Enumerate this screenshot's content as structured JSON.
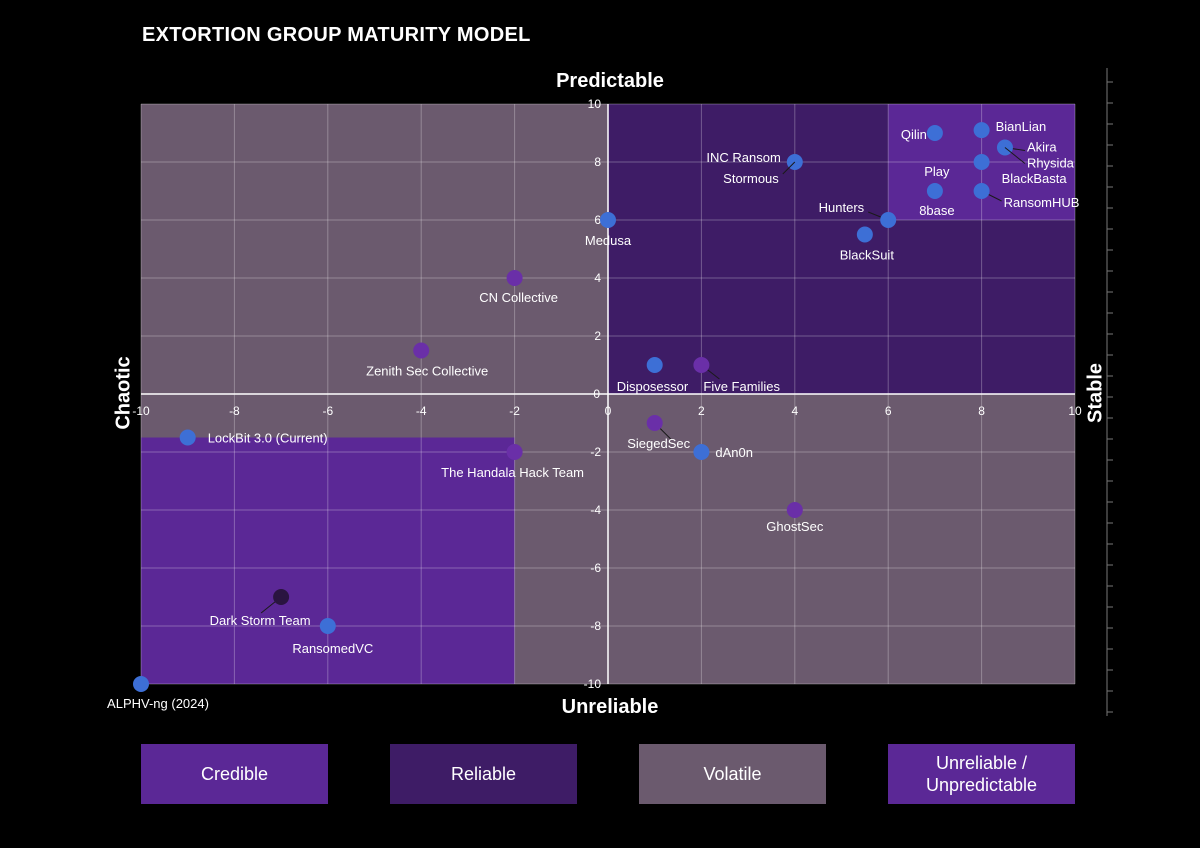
{
  "title": "EXTORTION GROUP MATURITY MODEL",
  "axis_ends": {
    "top": "Predictable",
    "bottom": "Unreliable",
    "left": "Chaotic",
    "right": "Stable"
  },
  "legend": [
    {
      "label": "Credible",
      "color": "#5b2896"
    },
    {
      "label": "Reliable",
      "color": "#3e1c66"
    },
    {
      "label": "Volatile",
      "color": "#6b5a6e"
    },
    {
      "label": "Unreliable /\nUnpredictable",
      "color": "#5b2896"
    }
  ],
  "chart_data": {
    "type": "scatter",
    "title": "EXTORTION GROUP MATURITY MODEL",
    "xlim": [
      -10,
      10
    ],
    "ylim": [
      -10,
      10
    ],
    "x_ticks": [
      -10,
      -8,
      -6,
      -4,
      -2,
      0,
      2,
      4,
      6,
      8,
      10
    ],
    "y_ticks": [
      -10,
      -8,
      -6,
      -4,
      -2,
      0,
      2,
      4,
      6,
      8,
      10
    ],
    "grid": true,
    "colors": {
      "blue": "#3d6fd6",
      "purple": "#6a2fa8",
      "dark": "#2a1440"
    },
    "regions": [
      {
        "name": "Volatile",
        "x": [
          -10,
          10
        ],
        "y": [
          -10,
          10
        ],
        "color": "#6b5a6e"
      },
      {
        "name": "Reliable",
        "x": [
          0,
          10
        ],
        "y": [
          0,
          10
        ],
        "color": "#3e1c66"
      },
      {
        "name": "Credible",
        "x": [
          6,
          10
        ],
        "y": [
          6,
          10
        ],
        "color": "#5b2896"
      },
      {
        "name": "Unreliable / Unpredictable",
        "x": [
          -10,
          -2
        ],
        "y": [
          -10,
          -1.5
        ],
        "color": "#5b2896"
      }
    ],
    "points": [
      {
        "label": "Qilin",
        "x": 7,
        "y": 9,
        "color": "blue"
      },
      {
        "label": "BianLian",
        "x": 8,
        "y": 9.1,
        "color": "blue"
      },
      {
        "label": "Akira",
        "x": 8.5,
        "y": 8.5,
        "color": "blue"
      },
      {
        "label": "Rhysida",
        "x": 8.5,
        "y": 8.5,
        "color": "blue"
      },
      {
        "label": "BlackBasta",
        "x": 8,
        "y": 8,
        "color": "blue"
      },
      {
        "label": "Play",
        "x": 7,
        "y": 7,
        "color": "blue"
      },
      {
        "label": "8base",
        "x": 7,
        "y": 7,
        "color": "blue"
      },
      {
        "label": "RansomHUB",
        "x": 8,
        "y": 7,
        "color": "blue"
      },
      {
        "label": "INC Ransom",
        "x": 4,
        "y": 8,
        "color": "blue"
      },
      {
        "label": "Stormous",
        "x": 4,
        "y": 8,
        "color": "blue"
      },
      {
        "label": "Hunters",
        "x": 6,
        "y": 6,
        "color": "blue"
      },
      {
        "label": "BlackSuit",
        "x": 5.5,
        "y": 5.5,
        "color": "blue"
      },
      {
        "label": "Medusa",
        "x": 0,
        "y": 6,
        "color": "blue"
      },
      {
        "label": "CN Collective",
        "x": -2,
        "y": 4,
        "color": "purple"
      },
      {
        "label": "Zenith Sec Collective",
        "x": -4,
        "y": 1.5,
        "color": "purple"
      },
      {
        "label": "Disposessor",
        "x": 1,
        "y": 1,
        "color": "blue"
      },
      {
        "label": "Five Families",
        "x": 2,
        "y": 1,
        "color": "purple"
      },
      {
        "label": "LockBit 3.0 (Current)",
        "x": -9,
        "y": -1.5,
        "color": "blue"
      },
      {
        "label": "SiegedSec",
        "x": 1,
        "y": -1,
        "color": "purple"
      },
      {
        "label": "The Handala Hack Team",
        "x": -2,
        "y": -2,
        "color": "purple"
      },
      {
        "label": "dAn0n",
        "x": 2,
        "y": -2,
        "color": "blue"
      },
      {
        "label": "GhostSec",
        "x": 4,
        "y": -4,
        "color": "purple"
      },
      {
        "label": "Dark Storm Team",
        "x": -7,
        "y": -7,
        "color": "dark"
      },
      {
        "label": "RansomedVC",
        "x": -6,
        "y": -8,
        "color": "blue"
      },
      {
        "label": "ALPHV-ng (2024)",
        "x": -10,
        "y": -10,
        "color": "blue"
      }
    ]
  }
}
